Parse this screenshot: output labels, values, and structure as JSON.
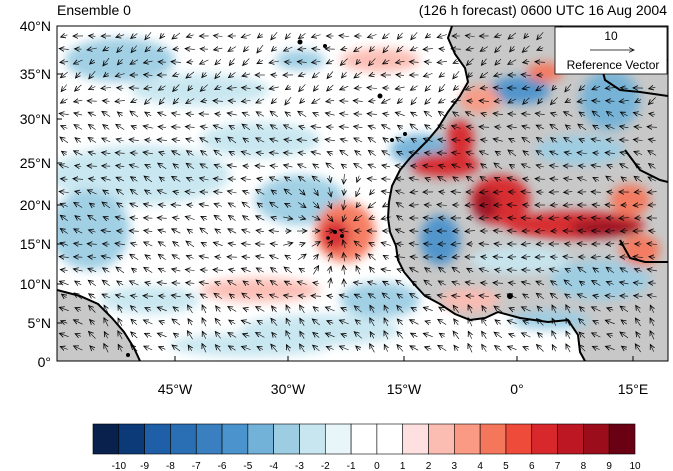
{
  "header": {
    "left_title": "Ensemble 0",
    "right_title": "(126 h forecast) 0600 UTC 16 Aug 2004"
  },
  "map": {
    "lat_labels": [
      "40°N",
      "35°N",
      "30°N",
      "25°N",
      "20°N",
      "15°N",
      "10°N",
      "5°N",
      "0°"
    ],
    "lon_labels": [
      "45°W",
      "30°W",
      "15°W",
      "0°",
      "15°E"
    ],
    "land_fill": "#c8c8c8",
    "coast_color": "#000000",
    "arrow_color": "#000000"
  },
  "reference_vector": {
    "value": "10",
    "label": "Reference Vector"
  },
  "colorbar": {
    "labels": [
      "-10",
      "-9",
      "-8",
      "-7",
      "-6",
      "-5",
      "-4",
      "-3",
      "-2",
      "-1",
      "0",
      "1",
      "2",
      "3",
      "4",
      "5",
      "6",
      "7",
      "8",
      "9",
      "10"
    ],
    "colors": [
      "#08214d",
      "#0c3a78",
      "#1f5fa8",
      "#2a6fb4",
      "#3a80c0",
      "#4b93cc",
      "#73b2d8",
      "#9ccde3",
      "#c7e6f0",
      "#e8f6fa",
      "#ffffff",
      "#ffffff",
      "#fde0df",
      "#fbbcb2",
      "#fa9a84",
      "#f5775b",
      "#ef4b3b",
      "#d8282b",
      "#bd1724",
      "#9c0d1c",
      "#6a0014"
    ]
  }
}
